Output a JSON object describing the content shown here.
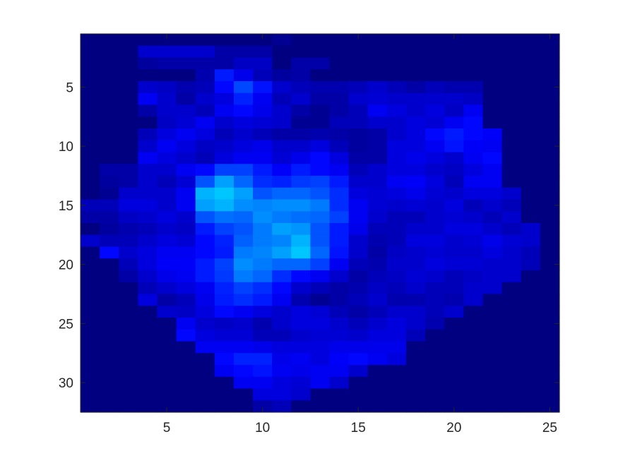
{
  "chart_data": {
    "type": "heatmap",
    "title": "",
    "xlabel": "",
    "ylabel": "",
    "xlim": [
      0.5,
      25.5
    ],
    "ylim": [
      0.5,
      32.5
    ],
    "y_reversed": true,
    "x_ticks": [
      5,
      10,
      15,
      20,
      25
    ],
    "y_ticks": [
      5,
      10,
      15,
      20,
      25,
      30
    ],
    "x_tick_labels": [
      "5",
      "10",
      "15",
      "20",
      "25"
    ],
    "y_tick_labels": [
      "5",
      "10",
      "15",
      "20",
      "25",
      "30"
    ],
    "colormap": "jet (dark blue to cyan)",
    "colormap_stops": [
      "#000080",
      "#0000ff",
      "#0080ff",
      "#00ffff"
    ],
    "color_scale": [
      0,
      1
    ],
    "values": [
      [
        0,
        0,
        0,
        0,
        0,
        0,
        0,
        0,
        0,
        0,
        0.05,
        0,
        0,
        0,
        0,
        0,
        0,
        0,
        0,
        0,
        0,
        0,
        0,
        0,
        0
      ],
      [
        0,
        0,
        0,
        0.2,
        0.2,
        0.2,
        0.2,
        0.1,
        0.1,
        0.1,
        0,
        0,
        0,
        0,
        0,
        0,
        0,
        0,
        0,
        0,
        0,
        0,
        0,
        0,
        0
      ],
      [
        0,
        0,
        0,
        0.08,
        0.1,
        0.1,
        0.1,
        0.1,
        0.18,
        0.18,
        0,
        0.1,
        0.1,
        0,
        0,
        0,
        0,
        0,
        0,
        0,
        0,
        0,
        0,
        0,
        0
      ],
      [
        0,
        0,
        0,
        0,
        0,
        0,
        0.12,
        0.4,
        0.28,
        0.15,
        0.08,
        0.1,
        0,
        0,
        0,
        0,
        0,
        0,
        0,
        0,
        0,
        0,
        0,
        0,
        0
      ],
      [
        0,
        0,
        0,
        0.2,
        0.18,
        0.12,
        0.15,
        0.35,
        0.52,
        0.38,
        0.2,
        0.15,
        0.12,
        0.12,
        0.15,
        0.2,
        0.15,
        0.1,
        0.15,
        0.12,
        0.12,
        0,
        0,
        0,
        0
      ],
      [
        0,
        0,
        0,
        0.3,
        0.2,
        0.1,
        0.2,
        0.25,
        0.42,
        0.3,
        0.15,
        0.2,
        0.1,
        0.1,
        0.2,
        0.22,
        0.2,
        0.2,
        0.2,
        0.2,
        0.18,
        0,
        0,
        0,
        0
      ],
      [
        0,
        0,
        0,
        0.1,
        0.2,
        0.2,
        0.15,
        0.3,
        0.35,
        0.28,
        0.2,
        0.1,
        0.05,
        0.1,
        0.15,
        0.3,
        0.25,
        0.2,
        0.25,
        0.18,
        0.3,
        0,
        0,
        0,
        0
      ],
      [
        0,
        0,
        0,
        0,
        0.18,
        0.22,
        0.3,
        0.2,
        0.25,
        0.22,
        0.2,
        0.05,
        0.05,
        0.15,
        0.15,
        0.2,
        0.2,
        0.25,
        0.22,
        0.3,
        0.35,
        0,
        0,
        0,
        0
      ],
      [
        0,
        0,
        0,
        0.15,
        0.25,
        0.3,
        0.25,
        0.15,
        0.2,
        0.15,
        0.1,
        0.1,
        0.12,
        0.1,
        0.08,
        0.1,
        0.2,
        0.25,
        0.35,
        0.4,
        0.35,
        0.32,
        0,
        0,
        0
      ],
      [
        0,
        0,
        0,
        0.2,
        0.3,
        0.25,
        0.18,
        0.2,
        0.25,
        0.28,
        0.2,
        0.2,
        0.25,
        0.15,
        0.08,
        0.1,
        0.25,
        0.25,
        0.3,
        0.38,
        0.32,
        0.3,
        0,
        0,
        0
      ],
      [
        0,
        0,
        0,
        0.3,
        0.25,
        0.2,
        0.15,
        0.25,
        0.3,
        0.3,
        0.22,
        0.28,
        0.35,
        0.25,
        0.1,
        0.1,
        0.25,
        0.28,
        0.25,
        0.2,
        0.3,
        0.35,
        0,
        0,
        0
      ],
      [
        0,
        0.1,
        0.1,
        0.2,
        0.2,
        0.3,
        0.35,
        0.5,
        0.5,
        0.4,
        0.32,
        0.4,
        0.35,
        0.3,
        0.15,
        0.2,
        0.25,
        0.25,
        0.2,
        0.18,
        0.25,
        0.3,
        0,
        0,
        0
      ],
      [
        0,
        0.08,
        0.1,
        0.2,
        0.15,
        0.22,
        0.55,
        0.75,
        0.6,
        0.45,
        0.42,
        0.48,
        0.5,
        0.4,
        0.2,
        0.2,
        0.3,
        0.32,
        0.25,
        0.15,
        0.3,
        0.3,
        0,
        0,
        0
      ],
      [
        0,
        0.05,
        0.2,
        0.2,
        0.2,
        0.3,
        0.8,
        0.85,
        0.75,
        0.55,
        0.6,
        0.6,
        0.55,
        0.45,
        0.25,
        0.22,
        0.25,
        0.28,
        0.22,
        0.2,
        0.25,
        0.25,
        0.2,
        0,
        0
      ],
      [
        0.15,
        0.15,
        0.25,
        0.25,
        0.2,
        0.3,
        0.75,
        0.8,
        0.7,
        0.68,
        0.7,
        0.7,
        0.65,
        0.45,
        0.3,
        0.22,
        0.2,
        0.22,
        0.2,
        0.25,
        0.15,
        0.2,
        0.15,
        0,
        0
      ],
      [
        0.1,
        0.1,
        0.18,
        0.2,
        0.25,
        0.2,
        0.55,
        0.62,
        0.6,
        0.7,
        0.65,
        0.62,
        0.6,
        0.5,
        0.3,
        0.2,
        0.15,
        0.15,
        0.2,
        0.22,
        0.2,
        0.15,
        0.2,
        0,
        0
      ],
      [
        0,
        0.08,
        0.12,
        0.15,
        0.2,
        0.18,
        0.4,
        0.5,
        0.55,
        0.65,
        0.75,
        0.72,
        0.55,
        0.4,
        0.28,
        0.15,
        0.15,
        0.2,
        0.2,
        0.25,
        0.25,
        0.2,
        0.15,
        0.2,
        0
      ],
      [
        0.2,
        0.15,
        0.15,
        0.2,
        0.25,
        0.22,
        0.35,
        0.42,
        0.58,
        0.65,
        0.68,
        0.8,
        0.55,
        0.4,
        0.2,
        0.12,
        0.15,
        0.25,
        0.25,
        0.2,
        0.22,
        0.28,
        0.22,
        0.2,
        0
      ],
      [
        0,
        0.35,
        0.2,
        0.25,
        0.3,
        0.3,
        0.35,
        0.4,
        0.65,
        0.68,
        0.75,
        0.85,
        0.6,
        0.38,
        0.2,
        0.1,
        0.18,
        0.2,
        0.22,
        0.2,
        0.2,
        0.25,
        0.2,
        0.15,
        0
      ],
      [
        0,
        0,
        0.15,
        0.25,
        0.32,
        0.32,
        0.4,
        0.5,
        0.7,
        0.65,
        0.6,
        0.6,
        0.5,
        0.3,
        0.15,
        0.12,
        0.2,
        0.2,
        0.25,
        0.22,
        0.22,
        0.2,
        0.2,
        0.15,
        0
      ],
      [
        0,
        0,
        0.1,
        0.2,
        0.28,
        0.3,
        0.4,
        0.48,
        0.65,
        0.6,
        0.45,
        0.35,
        0.3,
        0.2,
        0.1,
        0.15,
        0.18,
        0.22,
        0.2,
        0.15,
        0.18,
        0.2,
        0.2,
        0,
        0
      ],
      [
        0,
        0,
        0,
        0.15,
        0.2,
        0.25,
        0.3,
        0.42,
        0.5,
        0.45,
        0.35,
        0.2,
        0.15,
        0.1,
        0.12,
        0.18,
        0.15,
        0.2,
        0.15,
        0.15,
        0.2,
        0.2,
        0,
        0,
        0
      ],
      [
        0,
        0,
        0,
        0.25,
        0.1,
        0.15,
        0.28,
        0.4,
        0.45,
        0.4,
        0.3,
        0.12,
        0.05,
        0.1,
        0.15,
        0.2,
        0.12,
        0.12,
        0.15,
        0.12,
        0.2,
        0,
        0,
        0,
        0
      ],
      [
        0,
        0,
        0,
        0,
        0.2,
        0.18,
        0.25,
        0.35,
        0.3,
        0.25,
        0.2,
        0.25,
        0.22,
        0.15,
        0.1,
        0.15,
        0.2,
        0.2,
        0.15,
        0.2,
        0,
        0,
        0,
        0,
        0
      ],
      [
        0,
        0,
        0,
        0,
        0,
        0.3,
        0.2,
        0.18,
        0.2,
        0.12,
        0.2,
        0.25,
        0.25,
        0.2,
        0.15,
        0.2,
        0.25,
        0.2,
        0.12,
        0,
        0,
        0,
        0,
        0,
        0
      ],
      [
        0,
        0,
        0,
        0,
        0,
        0.35,
        0.25,
        0.22,
        0.22,
        0.15,
        0.15,
        0.2,
        0.22,
        0.22,
        0.2,
        0.25,
        0.25,
        0.15,
        0,
        0,
        0,
        0,
        0,
        0,
        0
      ],
      [
        0,
        0,
        0,
        0,
        0,
        0,
        0.3,
        0.3,
        0.3,
        0.28,
        0.25,
        0.25,
        0.25,
        0.28,
        0.28,
        0.28,
        0.28,
        0,
        0,
        0,
        0,
        0,
        0,
        0,
        0
      ],
      [
        0,
        0,
        0,
        0,
        0,
        0,
        0,
        0.35,
        0.42,
        0.42,
        0.28,
        0.3,
        0.25,
        0.32,
        0.35,
        0.3,
        0.25,
        0,
        0,
        0,
        0,
        0,
        0,
        0,
        0
      ],
      [
        0,
        0,
        0,
        0,
        0,
        0,
        0,
        0.3,
        0.35,
        0.38,
        0.3,
        0.28,
        0.3,
        0.3,
        0.2,
        0,
        0,
        0,
        0,
        0,
        0,
        0,
        0,
        0,
        0
      ],
      [
        0,
        0,
        0,
        0,
        0,
        0,
        0,
        0,
        0.3,
        0.3,
        0.25,
        0.22,
        0.3,
        0.2,
        0,
        0,
        0,
        0,
        0,
        0,
        0,
        0,
        0,
        0,
        0
      ],
      [
        0,
        0,
        0,
        0,
        0,
        0,
        0,
        0,
        0,
        0.25,
        0.25,
        0.2,
        0,
        0,
        0,
        0,
        0,
        0,
        0,
        0,
        0,
        0,
        0,
        0,
        0
      ],
      [
        0,
        0,
        0,
        0,
        0,
        0,
        0,
        0,
        0,
        0.1,
        0.15,
        0,
        0,
        0,
        0,
        0,
        0,
        0,
        0,
        0,
        0,
        0,
        0,
        0,
        0
      ]
    ]
  }
}
